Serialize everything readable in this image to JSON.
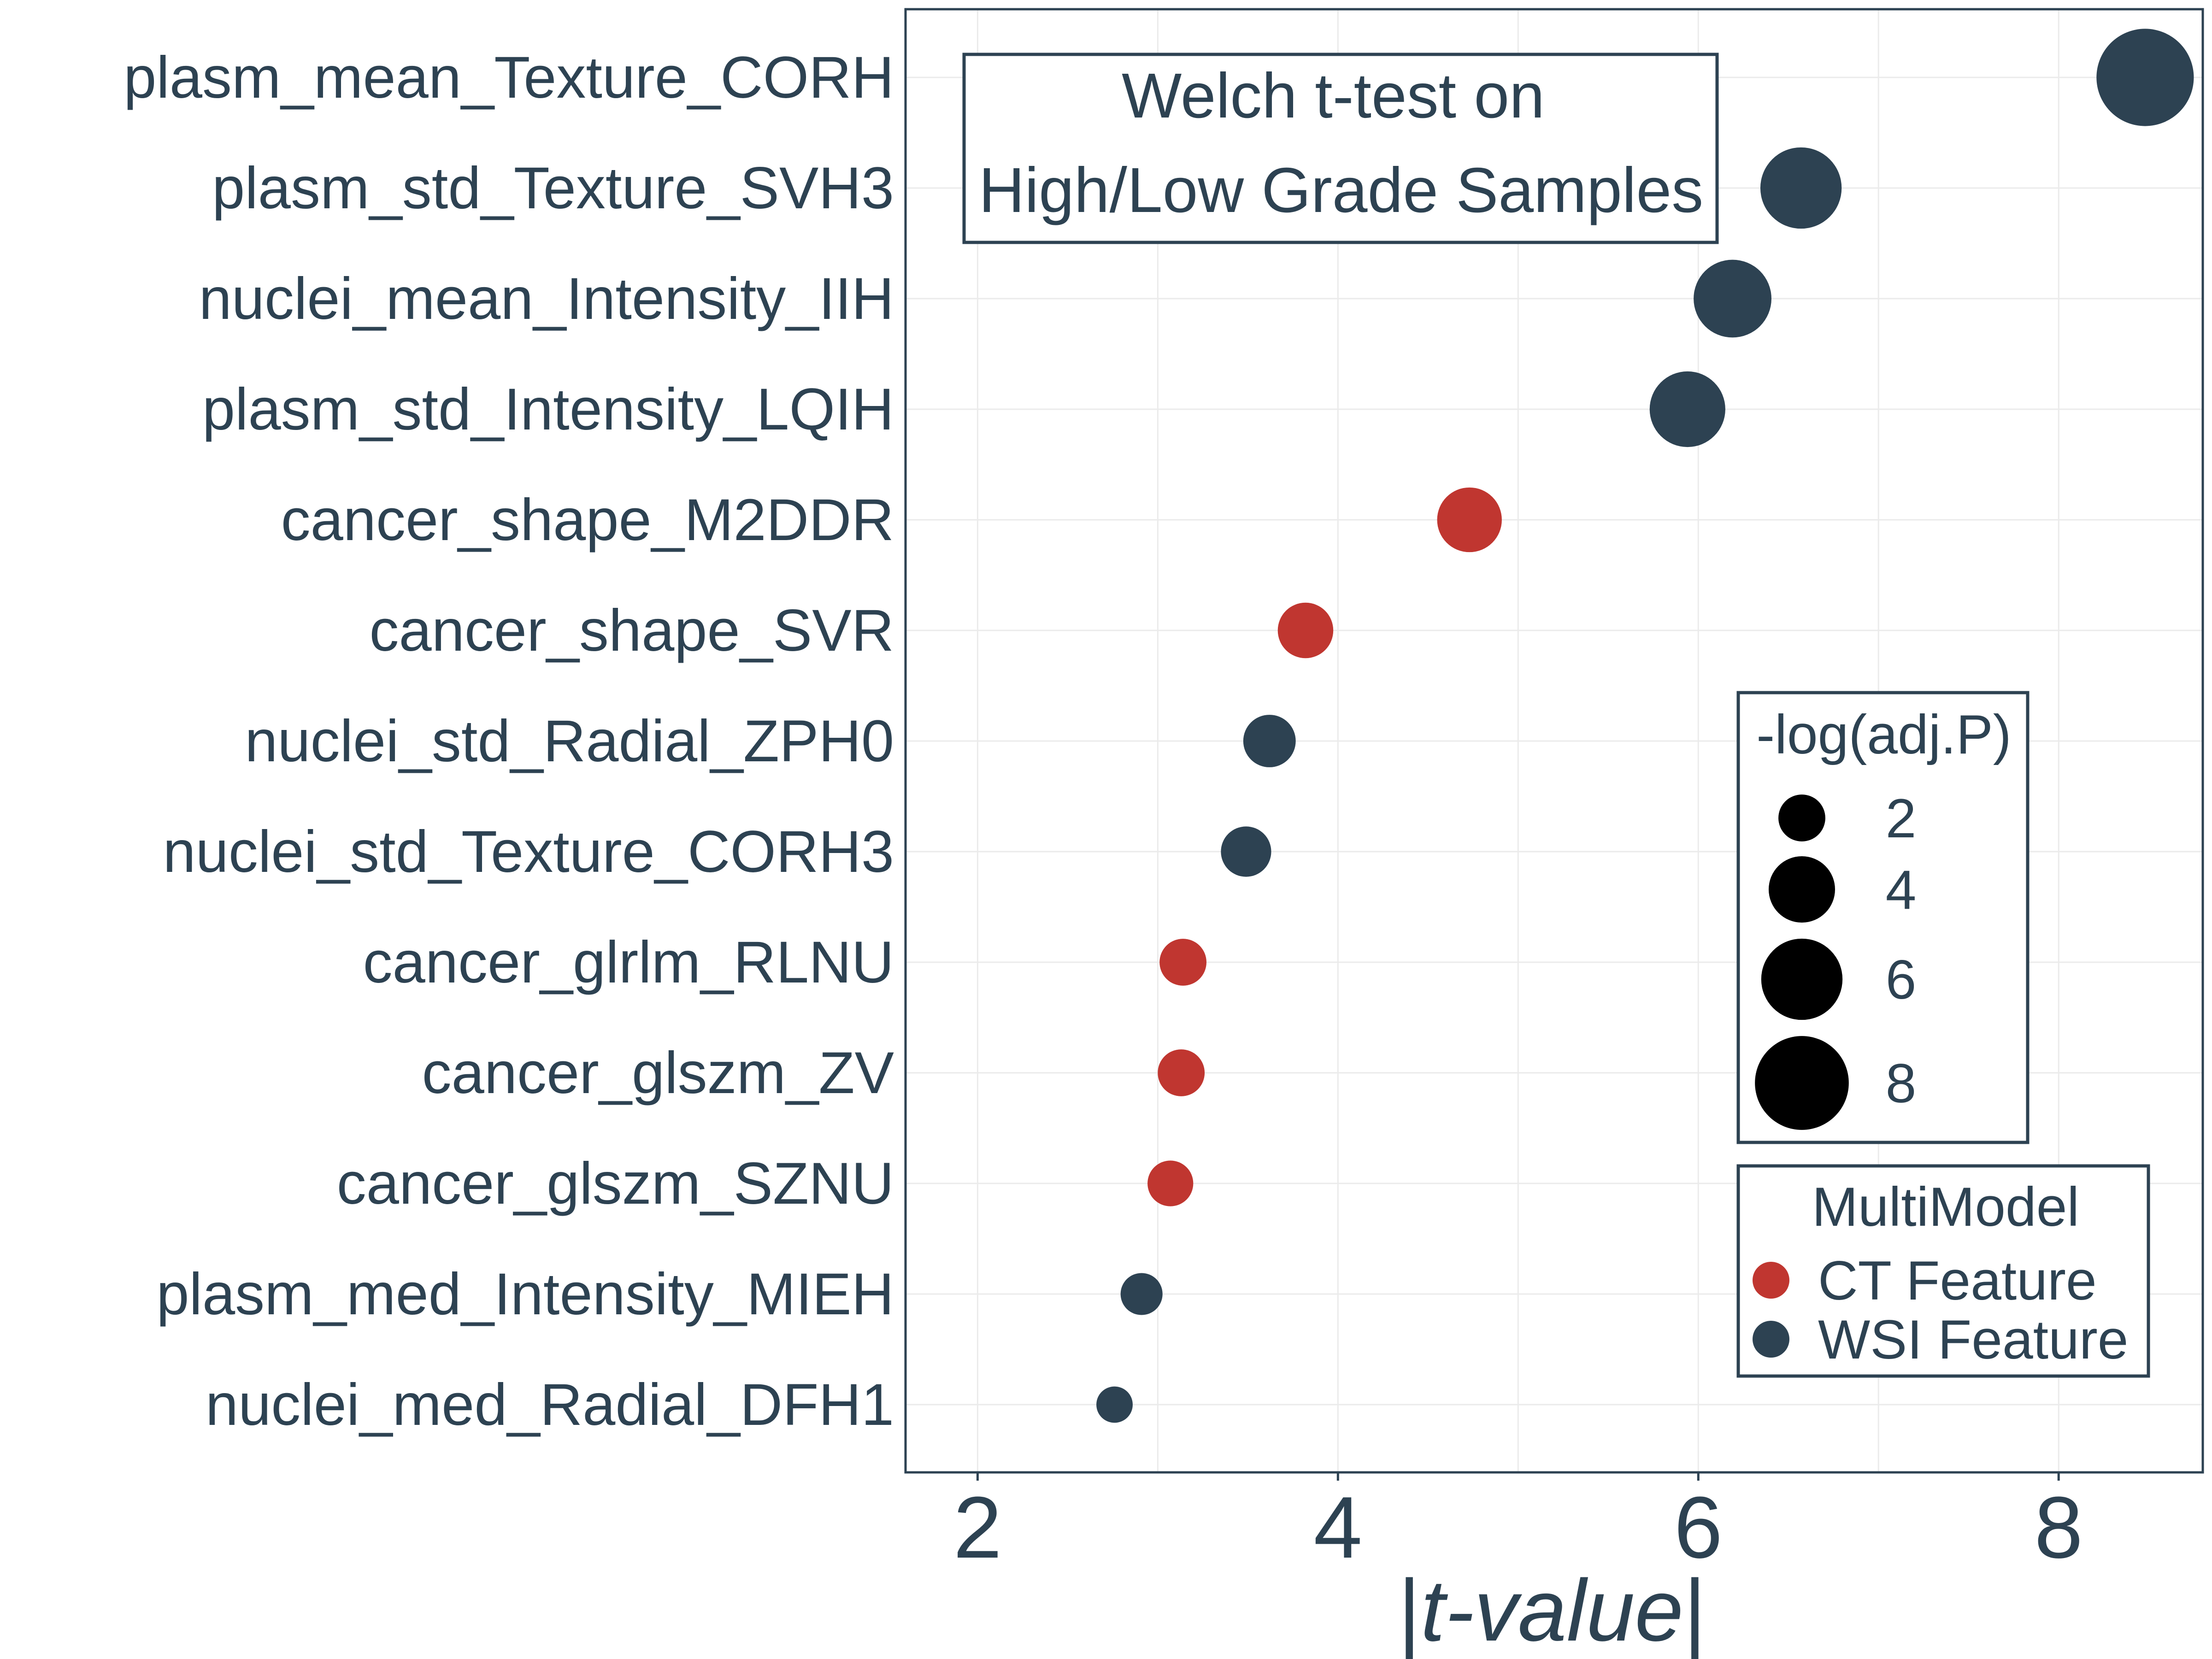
{
  "chart_data": {
    "type": "scatter",
    "title_box": {
      "line1": "Welch t-test on",
      "line2": "High/Low Grade Samples"
    },
    "xlabel_parts": {
      "open": "|",
      "italic": "t-value",
      "close": "|"
    },
    "xlim": [
      1.6,
      8.8
    ],
    "x_ticks": [
      2,
      4,
      6,
      8
    ],
    "x_tick_labels": [
      "2",
      "4",
      "6",
      "8"
    ],
    "grid": true,
    "points": [
      {
        "label": "plasm_mean_Texture_CORH",
        "x": 8.48,
        "size": 8.6,
        "group": "WSI Feature"
      },
      {
        "label": "plasm_std_Texture_SVH3",
        "x": 6.57,
        "size": 6.0,
        "group": "WSI Feature"
      },
      {
        "label": "nuclei_mean_Intensity_IIH",
        "x": 6.19,
        "size": 5.5,
        "group": "WSI Feature"
      },
      {
        "label": "plasm_std_Intensity_LQIH",
        "x": 5.94,
        "size": 5.2,
        "group": "WSI Feature"
      },
      {
        "label": "cancer_shape_M2DDR",
        "x": 4.73,
        "size": 3.8,
        "group": "CT Feature"
      },
      {
        "label": "cancer_shape_SVR",
        "x": 3.82,
        "size": 2.8,
        "group": "CT Feature"
      },
      {
        "label": "nuclei_std_Radial_ZPH0",
        "x": 3.62,
        "size": 2.5,
        "group": "WSI Feature"
      },
      {
        "label": "nuclei_std_Texture_CORH3",
        "x": 3.49,
        "size": 2.3,
        "group": "WSI Feature"
      },
      {
        "label": "cancer_glrlm_RLNU",
        "x": 3.14,
        "size": 2.0,
        "group": "CT Feature"
      },
      {
        "label": "cancer_glszm_ZV",
        "x": 3.13,
        "size": 2.0,
        "group": "CT Feature"
      },
      {
        "label": "cancer_glszm_SZNU",
        "x": 3.07,
        "size": 1.9,
        "group": "CT Feature"
      },
      {
        "label": "plasm_med_Intensity_MIEH",
        "x": 2.91,
        "size": 1.6,
        "group": "WSI Feature"
      },
      {
        "label": "nuclei_med_Radial_DFH1",
        "x": 2.76,
        "size": 1.2,
        "group": "WSI Feature"
      }
    ],
    "legend_size": {
      "title": "-log(adj.P)",
      "entries": [
        {
          "value": 2,
          "label": "2"
        },
        {
          "value": 4,
          "label": "4"
        },
        {
          "value": 6,
          "label": "6"
        },
        {
          "value": 8,
          "label": "8"
        }
      ],
      "placement": "right"
    },
    "legend_color": {
      "title": "MultiModel",
      "entries": [
        {
          "label": "CT Feature",
          "color": "#c03630"
        },
        {
          "label": "WSI Feature",
          "color": "#2d4252"
        }
      ],
      "placement": "bottom-right"
    },
    "colors": {
      "text": "#2d4252",
      "grid": "#ebebeb",
      "legend_key": "#000000"
    }
  }
}
